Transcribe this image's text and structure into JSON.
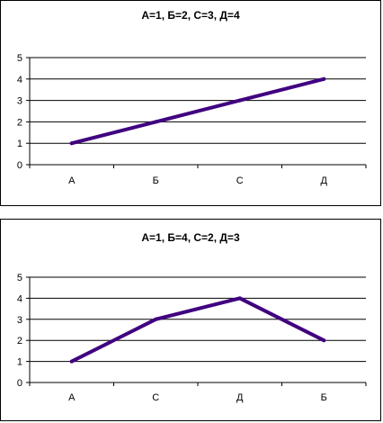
{
  "chart_data": [
    {
      "type": "line",
      "title": "А=1, Б=2, С=3, Д=4",
      "categories": [
        "А",
        "Б",
        "С",
        "Д"
      ],
      "series": [
        {
          "values": [
            1,
            2,
            3,
            4
          ]
        }
      ],
      "ylim": [
        0,
        5
      ],
      "yticks": [
        "0",
        "1",
        "2",
        "3",
        "4",
        "5"
      ],
      "grid": true,
      "line_color": "#400080"
    },
    {
      "type": "line",
      "title": "А=1, Б=4, С=2, Д=3",
      "categories": [
        "А",
        "С",
        "Д",
        "Б"
      ],
      "series": [
        {
          "values": [
            1,
            3,
            4,
            2
          ]
        }
      ],
      "ylim": [
        0,
        5
      ],
      "yticks": [
        "0",
        "1",
        "2",
        "3",
        "4",
        "5"
      ],
      "grid": true,
      "line_color": "#400080"
    }
  ]
}
